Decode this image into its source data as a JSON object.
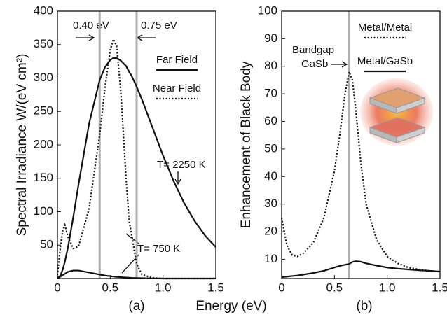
{
  "chart_data": [
    {
      "type": "line",
      "panel_label": "(a)",
      "ylabel": "Spectral Irradiance W/(eV cm²)",
      "x": [
        0,
        0.03,
        0.05,
        0.07,
        0.1,
        0.15,
        0.2,
        0.3,
        0.4,
        0.45,
        0.5,
        0.53,
        0.56,
        0.6,
        0.65,
        0.68,
        0.7,
        0.75,
        0.8,
        0.9,
        1.0,
        1.1,
        1.2,
        1.3,
        1.4,
        1.5
      ],
      "series": [
        {
          "name": "Far Field",
          "color": "#111111",
          "dash": "solid",
          "values": [
            0,
            5,
            13.5,
            25,
            47,
            92,
            141,
            232,
            297,
            316,
            327,
            330,
            330,
            326,
            318,
            309,
            304,
            287,
            268,
            226,
            184,
            146,
            113,
            86,
            64,
            47
          ]
        },
        {
          "name": "Near Field",
          "color": "#111111",
          "dash": "dotted",
          "values": [
            5,
            50,
            72,
            80,
            62,
            45,
            48,
            105,
            215,
            285,
            342,
            358,
            348,
            280,
            150,
            85,
            68,
            22,
            6,
            1,
            0,
            0,
            0,
            0,
            0,
            0
          ]
        },
        {
          "name": "Far Field",
          "color": "#111111",
          "dash": "solid",
          "values": [
            0,
            3,
            5,
            7,
            10,
            12,
            12,
            9,
            6,
            4.5,
            3.5,
            3,
            2.5,
            2,
            1.5,
            1.2,
            1,
            0.7,
            0.5,
            0.2,
            0,
            0,
            0,
            0,
            0,
            0
          ]
        }
      ],
      "xlim": [
        0,
        1.5
      ],
      "ylim": [
        0,
        400
      ],
      "xticks": [
        0,
        0.5,
        {
          "value": 1,
          "label": "1.0"
        },
        1.5
      ],
      "yticks": [
        50,
        100,
        150,
        200,
        250,
        300,
        350,
        400
      ],
      "vlines": [
        0.4,
        0.75
      ],
      "vline_color": "#b0b0b0",
      "annotations": [
        "0.40 eV",
        "0.75 eV",
        "T= 2250 K",
        "T= 750 K"
      ]
    },
    {
      "type": "line",
      "panel_label": "(b)",
      "ylabel": "Enhancement of Black Body",
      "x": [
        0,
        0.05,
        0.1,
        0.15,
        0.2,
        0.3,
        0.4,
        0.5,
        0.55,
        0.6,
        0.64,
        0.67,
        0.7,
        0.75,
        0.8,
        0.9,
        1.0,
        1.1,
        1.2,
        1.3,
        1.4,
        1.5
      ],
      "series": [
        {
          "name": "Metal/Metal",
          "color": "#111111",
          "dash": "dotted",
          "values": [
            25,
            15,
            11.5,
            11,
            12,
            16,
            25,
            42,
            55,
            70,
            78,
            75,
            65,
            45,
            30,
            17,
            11,
            8.5,
            7,
            6.3,
            5.8,
            5.5
          ]
        },
        {
          "name": "Metal/GaSb",
          "color": "#111111",
          "dash": "solid",
          "values": [
            3.5,
            3.7,
            3.9,
            4.1,
            4.4,
            5,
            5.8,
            7,
            7.6,
            8,
            8.3,
            9,
            9.3,
            9.1,
            8.5,
            7.7,
            7,
            6.6,
            6.3,
            6,
            5.8,
            5.5
          ]
        }
      ],
      "xlim": [
        0,
        1.5
      ],
      "ylim": [
        3,
        100
      ],
      "xticks": [
        0,
        0.5,
        {
          "value": 1,
          "label": "1.0"
        },
        1.5
      ],
      "yticks": [
        10,
        20,
        30,
        40,
        50,
        60,
        70,
        80,
        90,
        100
      ],
      "vlines": [
        0.64
      ],
      "vline_color": "#b0b0b0",
      "annotations": [
        "Bandgap",
        "GaSb"
      ]
    }
  ],
  "xlabel": "Energy (eV)"
}
